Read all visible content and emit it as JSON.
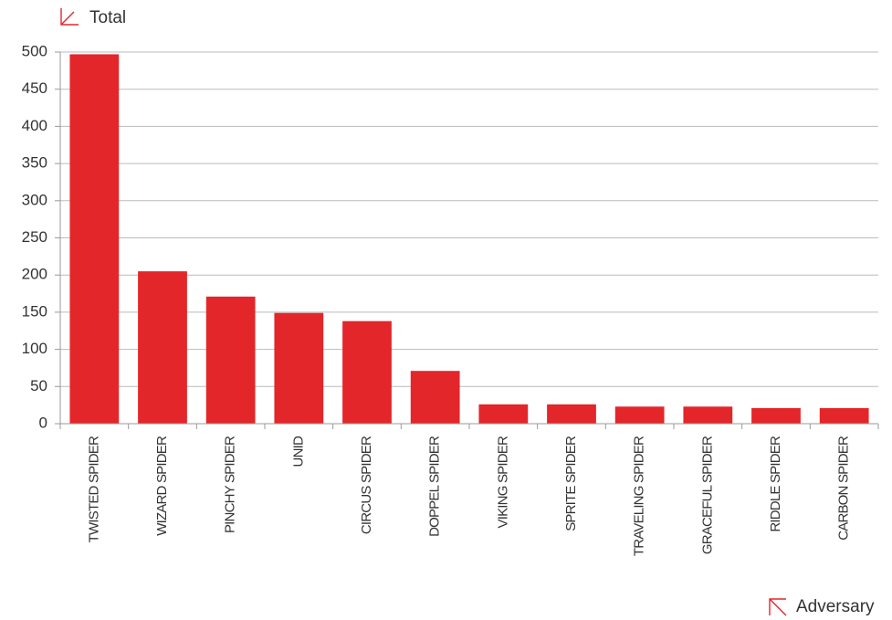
{
  "chart_data": {
    "type": "bar",
    "y_label": "Total",
    "x_label": "Adversary",
    "categories": [
      "TWISTED SPIDER",
      "WIZARD SPIDER",
      "PINCHY SPIDER",
      "UNID",
      "CIRCUS SPIDER",
      "DOPPEL SPIDER",
      "VIKING SPIDER",
      "SPRITE SPIDER",
      "TRAVELING SPIDER",
      "GRACEFUL SPIDER",
      "RIDDLE SPIDER",
      "CARBON SPIDER"
    ],
    "values": [
      497,
      205,
      171,
      149,
      138,
      71,
      26,
      26,
      23,
      23,
      21,
      21
    ],
    "color": "#e3262a",
    "ylim": [
      0,
      500
    ],
    "yticks": [
      0,
      50,
      100,
      150,
      200,
      250,
      300,
      350,
      400,
      450,
      500
    ],
    "grid": true
  }
}
